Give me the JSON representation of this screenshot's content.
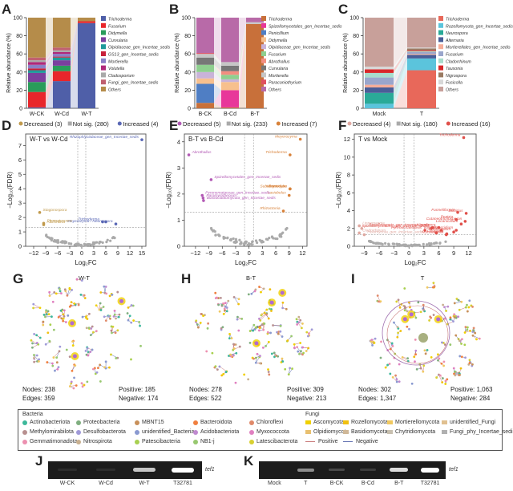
{
  "panels": {
    "A": "A",
    "B": "B",
    "C": "C",
    "D": "D",
    "E": "E",
    "F": "F",
    "G": "G",
    "H": "H",
    "I": "I",
    "J": "J",
    "K": "K"
  },
  "chart_data": [
    {
      "id": "A",
      "type": "bar",
      "stacked": true,
      "ylabel": "Relative abundance (%)",
      "ylim": [
        0,
        100
      ],
      "yticks": [
        "0",
        "20",
        "40",
        "60",
        "80",
        "100"
      ],
      "categories": [
        "W-CK",
        "W-Cd",
        "W-T"
      ],
      "series": [
        {
          "name": "Trichoderma",
          "color": "#4f5fa8",
          "values": [
            1,
            30,
            94
          ]
        },
        {
          "name": "Fusarium",
          "color": "#e8262b",
          "values": [
            17,
            11,
            2
          ]
        },
        {
          "name": "Didymella",
          "color": "#2a9c5a",
          "values": [
            11,
            6,
            0
          ]
        },
        {
          "name": "Curvularia",
          "color": "#7b3f9e",
          "values": [
            10,
            6,
            0
          ]
        },
        {
          "name": "Olpidiaceae_gen_Incertae_sedis",
          "color": "#1f9a9a",
          "values": [
            3,
            3,
            0
          ]
        },
        {
          "name": "GS13_gen_Incertae_sedis",
          "color": "#c8203a",
          "values": [
            2,
            1,
            0
          ]
        },
        {
          "name": "Mortierella",
          "color": "#8a7fc6",
          "values": [
            4,
            3,
            0
          ]
        },
        {
          "name": "Volutella",
          "color": "#b0287a",
          "values": [
            3,
            2,
            0
          ]
        },
        {
          "name": "Cladosporium",
          "color": "#a9a9a9",
          "values": [
            2,
            2,
            0
          ]
        },
        {
          "name": "Fungi_gen_Incertae_sedis",
          "color": "#c06070",
          "values": [
            3,
            3,
            0
          ]
        },
        {
          "name": "Others",
          "color": "#b58c4a",
          "values": [
            44,
            33,
            4
          ]
        }
      ]
    },
    {
      "id": "B",
      "type": "bar",
      "stacked": true,
      "ylabel": "Relative abundance (%)",
      "ylim": [
        0,
        100
      ],
      "yticks": [
        "0",
        "20",
        "40",
        "60",
        "80",
        "100"
      ],
      "categories": [
        "B-CK",
        "B-Cd",
        "B-T"
      ],
      "series": [
        {
          "name": "Trichoderma",
          "color": "#c8703a",
          "values": [
            6,
            1,
            93
          ]
        },
        {
          "name": "Spizellomycetales_gen_Incertae_sedis",
          "color": "#e8379a",
          "values": [
            0,
            19,
            0
          ]
        },
        {
          "name": "Penicillium",
          "color": "#4f7ec4",
          "values": [
            21,
            0,
            0
          ]
        },
        {
          "name": "Didymella",
          "color": "#f7c08e",
          "values": [
            6,
            9,
            0
          ]
        },
        {
          "name": "Olpidiaceae_gen_Incertae_sedis",
          "color": "#c9b3d9",
          "values": [
            7,
            3,
            0
          ]
        },
        {
          "name": "Fusarium",
          "color": "#8fcf8f",
          "values": [
            8,
            5,
            0
          ]
        },
        {
          "name": "Abrothallus",
          "color": "#f28e80",
          "values": [
            0,
            4,
            0
          ]
        },
        {
          "name": "Curvularia",
          "color": "#777777",
          "values": [
            8,
            6,
            0
          ]
        },
        {
          "name": "Mortierella",
          "color": "#c6c6c6",
          "values": [
            4,
            4,
            2
          ]
        },
        {
          "name": "Paraconiothyrium",
          "color": "#e05060",
          "values": [
            1,
            0,
            0
          ]
        },
        {
          "name": "Others",
          "color": "#b86aa8",
          "values": [
            39,
            49,
            5
          ]
        }
      ]
    },
    {
      "id": "C",
      "type": "bar",
      "stacked": true,
      "ylabel": "Relative abundance (%)",
      "ylim": [
        0,
        100
      ],
      "yticks": [
        "0",
        "20",
        "40",
        "60",
        "80",
        "100"
      ],
      "categories": [
        "Mock",
        "T"
      ],
      "series": [
        {
          "name": "Trichoderma",
          "color": "#e8685a",
          "values": [
            0,
            42
          ]
        },
        {
          "name": "Rozellomycota_gen_Incertae_sedis",
          "color": "#5bc4dc",
          "values": [
            5,
            13
          ]
        },
        {
          "name": "Neurospora",
          "color": "#2aaa98",
          "values": [
            12,
            0
          ]
        },
        {
          "name": "Alternaria",
          "color": "#4a5e98",
          "values": [
            6,
            4
          ]
        },
        {
          "name": "Mortierellales_gen_Incertae_sedis",
          "color": "#f6ad98",
          "values": [
            3,
            1
          ]
        },
        {
          "name": "Fusarium",
          "color": "#9aa6cc",
          "values": [
            8,
            2
          ]
        },
        {
          "name": "Cladorrhinum",
          "color": "#a8dccc",
          "values": [
            5,
            1
          ]
        },
        {
          "name": "Tausonia",
          "color": "#d8282a",
          "values": [
            4,
            1
          ]
        },
        {
          "name": "Nigrospora",
          "color": "#9a7a62",
          "values": [
            0,
            2
          ]
        },
        {
          "name": "Fusicolla",
          "color": "#d8d8d8",
          "values": [
            3,
            1
          ]
        },
        {
          "name": "Others",
          "color": "#c8a09a",
          "values": [
            54,
            33
          ]
        }
      ]
    },
    {
      "id": "D",
      "type": "scatter",
      "subtitle": "W-T vs W-Cd",
      "legend": {
        "decreased": "Decreased (3)",
        "notsig": "Not sig. (280)",
        "increased": "Increased (4)"
      },
      "colors": {
        "decreased": "#c19a4c",
        "notsig": "#aaaaaa",
        "increased": "#5a68b5"
      },
      "xlabel": "Log2FC",
      "ylabel": "-Log10(FDR)",
      "xlim": [
        -14,
        16
      ],
      "ylim": [
        0,
        7.8
      ],
      "xticks": [
        -12,
        -9,
        -6,
        -3,
        0,
        3,
        6,
        9,
        12,
        15
      ],
      "yticks": [
        0,
        1,
        2,
        3,
        4,
        5,
        6,
        7
      ],
      "vlines": [
        -1,
        1
      ],
      "hline": 1.3,
      "points": [
        {
          "label": "Rhizophlyctidaceae_gen_Incertae_sedis",
          "x": 15,
          "y": 7.4,
          "group": "increased"
        },
        {
          "label": "Trichoderma",
          "x": 5.2,
          "y": 1.7,
          "group": "increased"
        },
        {
          "label": "",
          "x": 6,
          "y": 1.7,
          "group": "increased"
        },
        {
          "label": "Meyerozyma / Neurospora",
          "x": 8.5,
          "y": 1.55,
          "group": "increased"
        },
        {
          "label": "Stagonospora",
          "x": -10.5,
          "y": 2.35,
          "group": "decreased"
        },
        {
          "label": "Phomatospora",
          "x": -9.5,
          "y": 1.6,
          "group": "decreased"
        },
        {
          "label": "Albifimbria",
          "x": -9.5,
          "y": 1.5,
          "group": "decreased"
        }
      ]
    },
    {
      "id": "E",
      "type": "scatter",
      "subtitle": "B-T vs B-Cd",
      "legend": {
        "decreased": "Decreased (5)",
        "notsig": "Not sig. (233)",
        "increased": "Increased (7)"
      },
      "colors": {
        "decreased": "#b35ab5",
        "notsig": "#aaaaaa",
        "increased": "#d8823a"
      },
      "xlabel": "Log2FC",
      "ylabel": "-Log10(FDR)",
      "xlim": [
        -14.5,
        13
      ],
      "ylim": [
        0,
        4.3
      ],
      "xticks": [
        -12,
        -9,
        -6,
        -3,
        0,
        3,
        6,
        9,
        12
      ],
      "yticks": [
        0,
        1,
        2,
        3,
        4
      ],
      "vlines": [
        -1,
        1
      ],
      "hline": 1.3,
      "points": [
        {
          "label": "Meyerozyma",
          "x": 11.5,
          "y": 4.1,
          "group": "increased"
        },
        {
          "label": "Trichoderma",
          "x": 9.2,
          "y": 3.5,
          "group": "increased"
        },
        {
          "label": "Minimedusa",
          "x": 9.2,
          "y": 2.2,
          "group": "increased"
        },
        {
          "label": "Coniocybe",
          "x": 9.2,
          "y": 2.2,
          "group": "increased"
        },
        {
          "label": "Subulicystidium",
          "x": 9.2,
          "y": 2.2,
          "group": "increased"
        },
        {
          "label": "Lasiobolus",
          "x": 9,
          "y": 1.95,
          "group": "increased"
        },
        {
          "label": "Rhizoctonia",
          "x": 7.7,
          "y": 1.35,
          "group": "increased"
        },
        {
          "label": "Abrothallus",
          "x": -13.5,
          "y": 3.5,
          "group": "decreased"
        },
        {
          "label": "Spizellomycetales_gen_Incertae_sedis",
          "x": -8.5,
          "y": 2.55,
          "group": "decreased"
        },
        {
          "label": "Pyronemataceae_gen_Incertae_sedis",
          "x": -10.5,
          "y": 1.95,
          "group": "decreased"
        },
        {
          "label": "Paramyrothecium",
          "x": -10.3,
          "y": 1.85,
          "group": "decreased"
        },
        {
          "label": "Blastocladiomycota_gen_Incertae_sedis",
          "x": -10.2,
          "y": 1.75,
          "group": "decreased"
        }
      ]
    },
    {
      "id": "F",
      "type": "scatter",
      "subtitle": "T vs Mock",
      "legend": {
        "decreased": "Decreased (4)",
        "notsig": "Not sig. (180)",
        "increased": "Increased (16)"
      },
      "colors": {
        "decreased": "#e0a8a0",
        "notsig": "#aaaaaa",
        "increased": "#e0504a"
      },
      "xlabel": "Log2FC",
      "ylabel": "-Log10(FDR)",
      "xlim": [
        -11,
        13.5
      ],
      "ylim": [
        0,
        12.6
      ],
      "xticks": [
        -9,
        -6,
        -3,
        0,
        3,
        6,
        9,
        12
      ],
      "yticks": [
        0,
        2,
        4,
        6,
        8,
        10,
        12
      ],
      "vlines": [
        -1,
        1
      ],
      "hline": 1.3,
      "points": [
        {
          "label": "Trichoderma",
          "x": 11,
          "y": 12.2,
          "group": "increased"
        },
        {
          "label": "Bolbitius",
          "x": 11.5,
          "y": 3.7,
          "group": "increased"
        },
        {
          "label": "Funneliformis",
          "x": 9.8,
          "y": 3.8,
          "group": "increased"
        },
        {
          "label": "Cutaneotrichosporon",
          "x": 11.3,
          "y": 2.8,
          "group": "increased"
        },
        {
          "label": "Pezizia",
          "x": 9.5,
          "y": 3.0,
          "group": "increased"
        },
        {
          "label": "Lecanicillium",
          "x": 10.5,
          "y": 2.5,
          "group": "increased"
        },
        {
          "label": "Nigrospora",
          "x": 6,
          "y": 2.1,
          "group": "increased"
        },
        {
          "label": "Myrmecridium",
          "x": 9.5,
          "y": 1.8,
          "group": "increased"
        },
        {
          "label": "Volutella",
          "x": 6.5,
          "y": 1.8,
          "group": "increased"
        },
        {
          "label": "Spizellomycetales_gen_Incertae_sedis",
          "x": 4.5,
          "y": 2.0,
          "group": "increased"
        },
        {
          "label": "Rozellomycota_gen_Incertae_sedis",
          "x": 4.8,
          "y": 2.1,
          "group": "increased"
        },
        {
          "label": "Pyrenochaetopsis",
          "x": 3.2,
          "y": 1.8,
          "group": "increased"
        },
        {
          "label": "Chaetomium",
          "x": 9,
          "y": 1.6,
          "group": "increased"
        },
        {
          "label": "Fusariella",
          "x": 7.6,
          "y": 1.4,
          "group": "increased"
        },
        {
          "label": "Mycofalcella",
          "x": 7.5,
          "y": 1.3,
          "group": "increased"
        },
        {
          "label": "",
          "x": 5.5,
          "y": 1.5,
          "group": "increased"
        },
        {
          "label": "Linnemannia",
          "x": -10,
          "y": 2.3,
          "group": "decreased"
        },
        {
          "label": "Echria",
          "x": -9.5,
          "y": 2.0,
          "group": "decreased"
        },
        {
          "label": "Cladorrhinum",
          "x": -10,
          "y": 1.5,
          "group": "decreased"
        },
        {
          "label": "Holomycota_gen_Incertae_sedis",
          "x": -9,
          "y": 1.3,
          "group": "decreased"
        }
      ]
    }
  ],
  "networks": [
    {
      "id": "G",
      "title": "W-T",
      "nodes_label": "Nodes: 238",
      "edges_label": "Edges: 359",
      "positive_label": "Positive: 185",
      "negative_label": "Negative: 174"
    },
    {
      "id": "H",
      "title": "B-T",
      "nodes_label": "Nodes: 278",
      "edges_label": "Edges: 522",
      "positive_label": "Positive: 309",
      "negative_label": "Negative: 213"
    },
    {
      "id": "I",
      "title": "T",
      "nodes_label": "Nodes: 302",
      "edges_label": "Edges: 1,347",
      "positive_label": "Positive: 1,063",
      "negative_label": "Negative: 284"
    }
  ],
  "network_legend": {
    "bacteria_title": "Bacteria",
    "fungi_title": "Fungi",
    "bacteria": [
      {
        "name": "Actinobacteriota",
        "color": "#3cb89a"
      },
      {
        "name": "Proteobacteria",
        "color": "#7fae7f"
      },
      {
        "name": "MBNT15",
        "color": "#c8905a"
      },
      {
        "name": "Bacteroidota",
        "color": "#f08040"
      },
      {
        "name": "Chloroflexi",
        "color": "#e08a6a"
      },
      {
        "name": "Methylomirabilota",
        "color": "#b89090"
      },
      {
        "name": "Desulfobacterota",
        "color": "#a09ad8"
      },
      {
        "name": "unidentified_Bacteria",
        "color": "#8a9ad0"
      },
      {
        "name": "Acidobacteriota",
        "color": "#c08ad0"
      },
      {
        "name": "Myxococcota",
        "color": "#e080c0"
      },
      {
        "name": "Gemmatimonadota",
        "color": "#ec90b0"
      },
      {
        "name": "Nitrospirota",
        "color": "#c8b090"
      },
      {
        "name": "Patescibacteria",
        "color": "#a8d050"
      },
      {
        "name": "NB1-j",
        "color": "#98c870"
      },
      {
        "name": "Latescibacterota",
        "color": "#d8d030"
      }
    ],
    "fungi": [
      {
        "name": "Ascomycota",
        "color": "#f0d000"
      },
      {
        "name": "Rozellomycota",
        "color": "#f0c010"
      },
      {
        "name": "Mortierellomycota",
        "color": "#f0c860"
      },
      {
        "name": "unidentified_Fungi",
        "color": "#e0c090"
      },
      {
        "name": "Olpidiomycota",
        "color": "#e8c070"
      },
      {
        "name": "Basidiomycota",
        "color": "#d0b898"
      },
      {
        "name": "Chytridiomycota",
        "color": "#c8c0b0"
      },
      {
        "name": "Fungi_phy_Incertae_sedis",
        "color": "#b0b0b0"
      }
    ],
    "positive_label": "Positive",
    "negative_label": "Negative",
    "positive_color": "#c87878",
    "negative_color": "#6070b0"
  },
  "gels": [
    {
      "id": "J",
      "gene": "tef1",
      "lanes": [
        {
          "label": "W-CK",
          "intensity": 0.05
        },
        {
          "label": "W-Cd",
          "intensity": 0.05
        },
        {
          "label": "W-T",
          "intensity": 0.75
        },
        {
          "label": "T32781",
          "intensity": 1.0
        }
      ]
    },
    {
      "id": "K",
      "gene": "tef1",
      "lanes": [
        {
          "label": "Mock",
          "intensity": 0.0
        },
        {
          "label": "T",
          "intensity": 0.5
        },
        {
          "label": "B-CK",
          "intensity": 0.2
        },
        {
          "label": "B-Cd",
          "intensity": 0.15
        },
        {
          "label": "B-T",
          "intensity": 0.85
        },
        {
          "label": "T32781",
          "intensity": 1.0
        }
      ]
    }
  ]
}
